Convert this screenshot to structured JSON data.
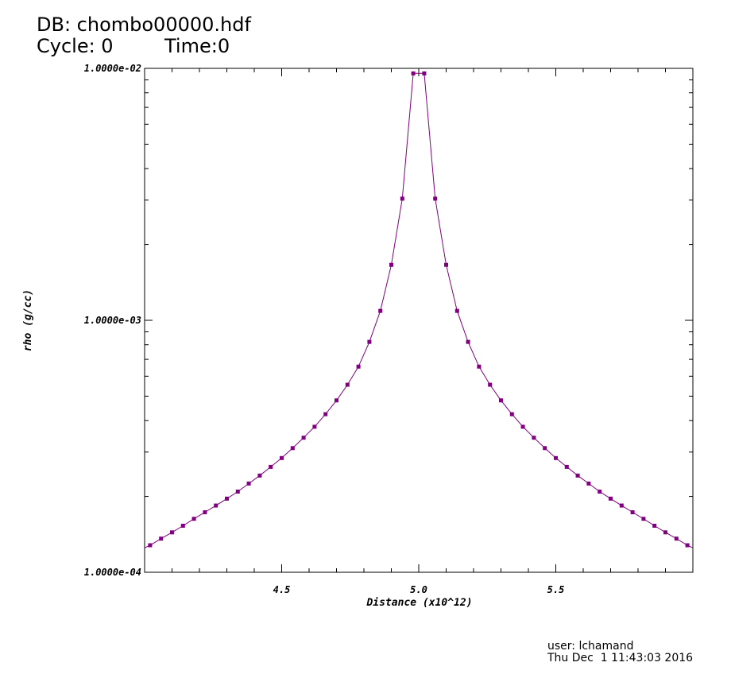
{
  "header": {
    "db": "DB: chombo00000.hdf",
    "cycle": "Cycle: 0",
    "time": "Time:0"
  },
  "footer": {
    "user": "user: lchamand",
    "date": "Thu Dec  1 11:43:03 2016"
  },
  "colors": {
    "series": "#800080",
    "axes": "#000000"
  },
  "chart_data": {
    "type": "line",
    "xlabel": "Distance (x10^12)",
    "ylabel": "rho (g/cc)",
    "xlim": [
      4.0,
      6.0
    ],
    "ylim": [
      0.0001,
      0.01
    ],
    "yscale": "log",
    "xticks": [
      4.5,
      5.0,
      5.5
    ],
    "xtick_labels": [
      "4.5",
      "5.0",
      "5.5"
    ],
    "yticks": [
      0.0001,
      0.001,
      0.01
    ],
    "ytick_labels": [
      "1.0000e-04",
      "1.0000e-03",
      "1.0000e-02"
    ],
    "grid": false,
    "markers": "square",
    "series": [
      {
        "x": [
          4.0,
          4.02,
          4.06,
          4.1,
          4.14,
          4.18,
          4.22,
          4.26,
          4.3,
          4.34,
          4.38,
          4.42,
          4.46,
          4.5,
          4.54,
          4.58,
          4.62,
          4.66,
          4.7,
          4.74,
          4.78,
          4.82,
          4.86,
          4.9,
          4.94,
          4.98,
          5.02,
          5.06,
          5.1,
          5.14,
          5.18,
          5.22,
          5.26,
          5.3,
          5.34,
          5.38,
          5.42,
          5.46,
          5.5,
          5.54,
          5.58,
          5.62,
          5.66,
          5.7,
          5.74,
          5.78,
          5.82,
          5.86,
          5.9,
          5.94,
          5.98,
          6.0
        ],
        "y": [
          0.000125,
          0.000128,
          0.000136,
          0.000144,
          0.000153,
          0.000163,
          0.000173,
          0.000184,
          0.000196,
          0.000209,
          0.000225,
          0.000242,
          0.000262,
          0.000284,
          0.000311,
          0.000342,
          0.000378,
          0.000424,
          0.000481,
          0.000555,
          0.000655,
          0.000821,
          0.00109,
          0.00166,
          0.00304,
          0.00955,
          0.00955,
          0.00304,
          0.00166,
          0.00109,
          0.000821,
          0.000655,
          0.000555,
          0.000481,
          0.000424,
          0.000378,
          0.000342,
          0.000311,
          0.000284,
          0.000262,
          0.000242,
          0.000225,
          0.000209,
          0.000196,
          0.000184,
          0.000173,
          0.000163,
          0.000153,
          0.000144,
          0.000136,
          0.000128,
          0.000125
        ]
      }
    ]
  }
}
